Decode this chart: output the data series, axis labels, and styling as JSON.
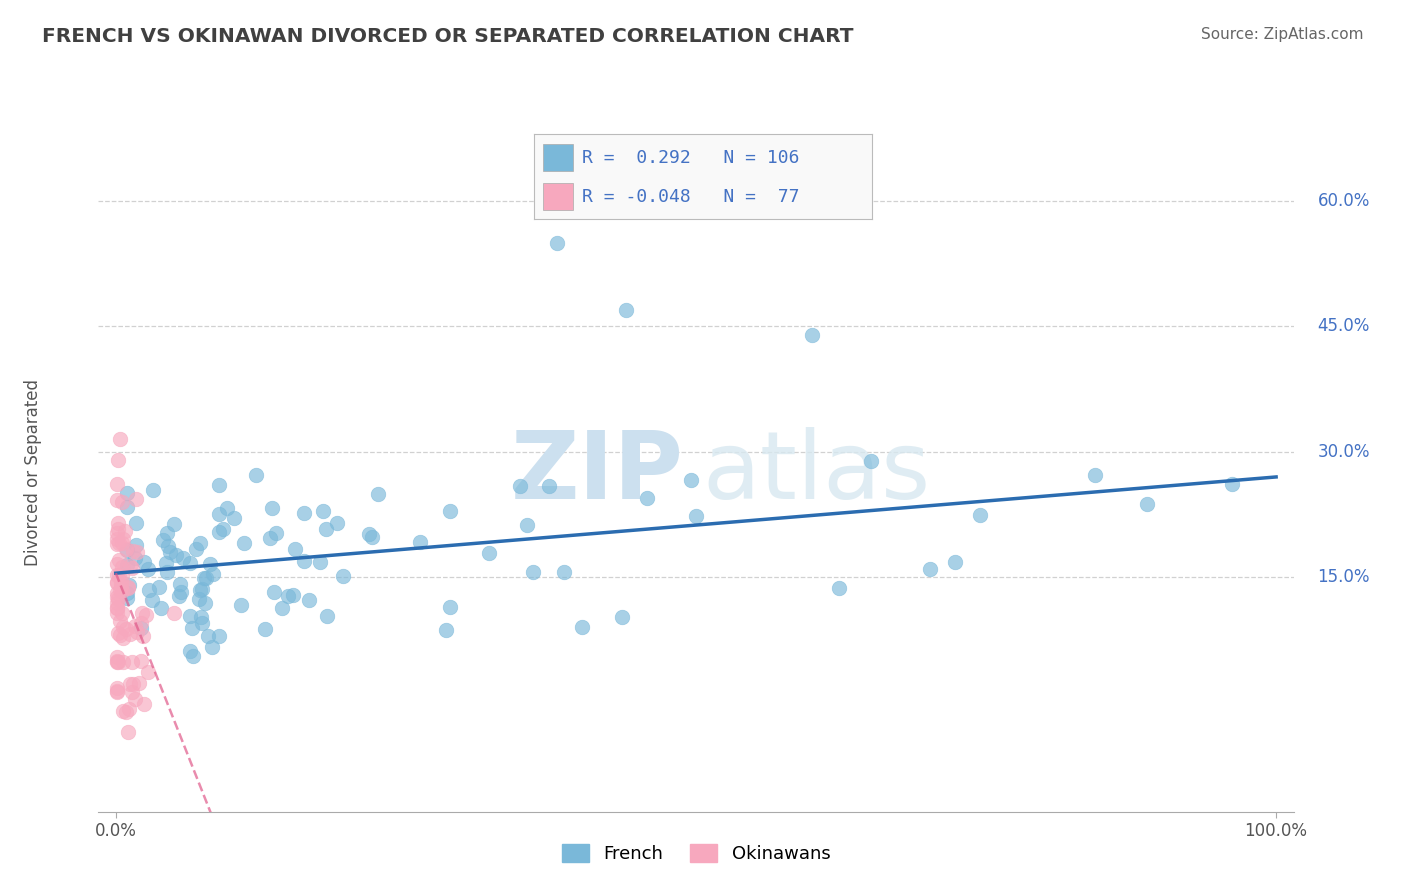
{
  "title": "FRENCH VS OKINAWAN DIVORCED OR SEPARATED CORRELATION CHART",
  "source": "Source: ZipAtlas.com",
  "ylabel": "Divorced or Separated",
  "french_R": 0.292,
  "french_N": 106,
  "okinawan_R": -0.048,
  "okinawan_N": 77,
  "french_color": "#7ab8d9",
  "okinawan_color": "#f7a8be",
  "french_line_color": "#2b6cb0",
  "okinawan_line_color": "#e05a8a",
  "background_color": "#ffffff",
  "grid_color": "#cccccc",
  "title_color": "#404040",
  "watermark_zip": "ZIP",
  "watermark_atlas": "atlas",
  "watermark_color": "#cce0ef",
  "legend_box_color": "#f9f9f9",
  "legend_border_color": "#bbbbbb",
  "stat_text_color": "#4472c4",
  "right_tick_color": "#4472c4",
  "source_color": "#666666",
  "ylabel_color": "#555555",
  "xtick_color": "#555555"
}
